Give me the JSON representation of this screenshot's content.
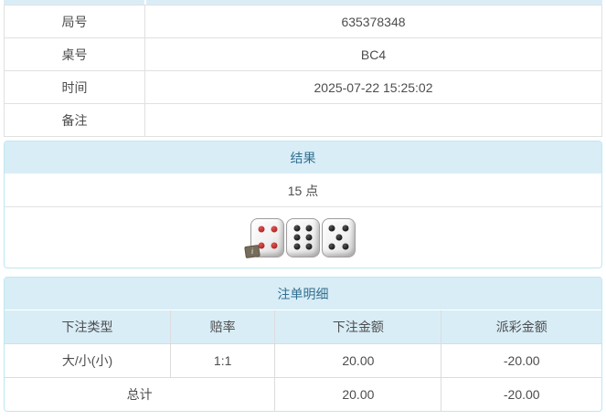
{
  "colors": {
    "panel_header_bg": "#d9edf7",
    "panel_header_text": "#31708f",
    "panel_border": "#bce8f1",
    "table_border": "#e0e0e0",
    "text": "#4d4d4d",
    "negative_red": "#e4393c"
  },
  "info_table": {
    "rows": [
      {
        "label": "局号",
        "value": "635378348"
      },
      {
        "label": "桌号",
        "value": "BC4"
      },
      {
        "label": "时间",
        "value": "2025-07-22 15:25:02"
      },
      {
        "label": "备注",
        "value": ""
      }
    ]
  },
  "result_panel": {
    "title": "结果",
    "points": "15 点",
    "dice": [
      {
        "value": 4,
        "color": "red"
      },
      {
        "value": 6,
        "color": "black"
      },
      {
        "value": 5,
        "color": "black"
      }
    ],
    "badge": "i"
  },
  "bet_panel": {
    "title": "注单明细",
    "columns": [
      "下注类型",
      "赔率",
      "下注金额",
      "派彩金额"
    ],
    "rows": [
      {
        "type": "大/小(小)",
        "odds": "1:1",
        "amount": "20.00",
        "payout": "-20.00"
      }
    ],
    "total": {
      "label": "总计",
      "amount": "20.00",
      "payout": "-20.00"
    }
  }
}
